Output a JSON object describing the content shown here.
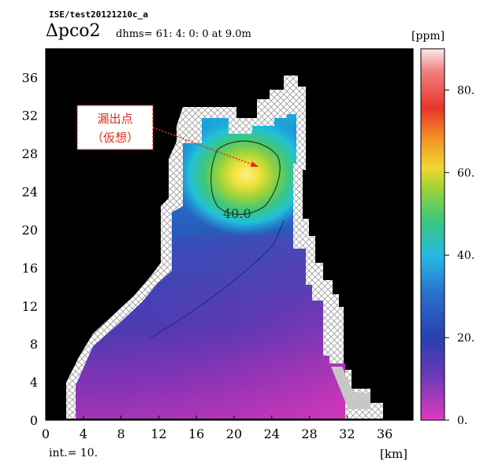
{
  "header": {
    "run_id": "ISE/test20121210c_a",
    "variable": "Δpco2",
    "time_info": "dhms= 61: 4: 0: 0  at    9.0m",
    "unit": "[ppm]"
  },
  "footer": {
    "interval": "int.= 10.",
    "x_unit": "[km]"
  },
  "annotation": {
    "line1": "漏出点",
    "line2": "（仮想）"
  },
  "colors": {
    "land": "#000000",
    "hatch": "#9a9a9a",
    "annotation": "#e0301e"
  },
  "chart_data": {
    "type": "heatmap",
    "title": "Δpco2",
    "xlabel": "[km]",
    "ylabel": "",
    "x_ticks": [
      0,
      4,
      8,
      12,
      16,
      20,
      24,
      28,
      32,
      36
    ],
    "y_ticks": [
      0,
      4,
      8,
      12,
      16,
      20,
      24,
      28,
      32,
      36
    ],
    "xlim": [
      0,
      39
    ],
    "ylim": [
      0,
      39
    ],
    "colorbar": {
      "label": "[ppm]",
      "range": [
        0,
        90
      ],
      "ticks": [
        0,
        20,
        40,
        60,
        80
      ],
      "tick_labels": [
        "0.",
        "20.",
        "40.",
        "60.",
        "80."
      ]
    },
    "contour_interval": 10,
    "contours": [
      {
        "level": 40,
        "label": "40.0"
      },
      {
        "level": 20,
        "label": ""
      }
    ],
    "peak": {
      "x": 22.5,
      "y": 24.5,
      "value": 58
    },
    "leak_point": {
      "x": 22.5,
      "y": 24.5
    }
  }
}
